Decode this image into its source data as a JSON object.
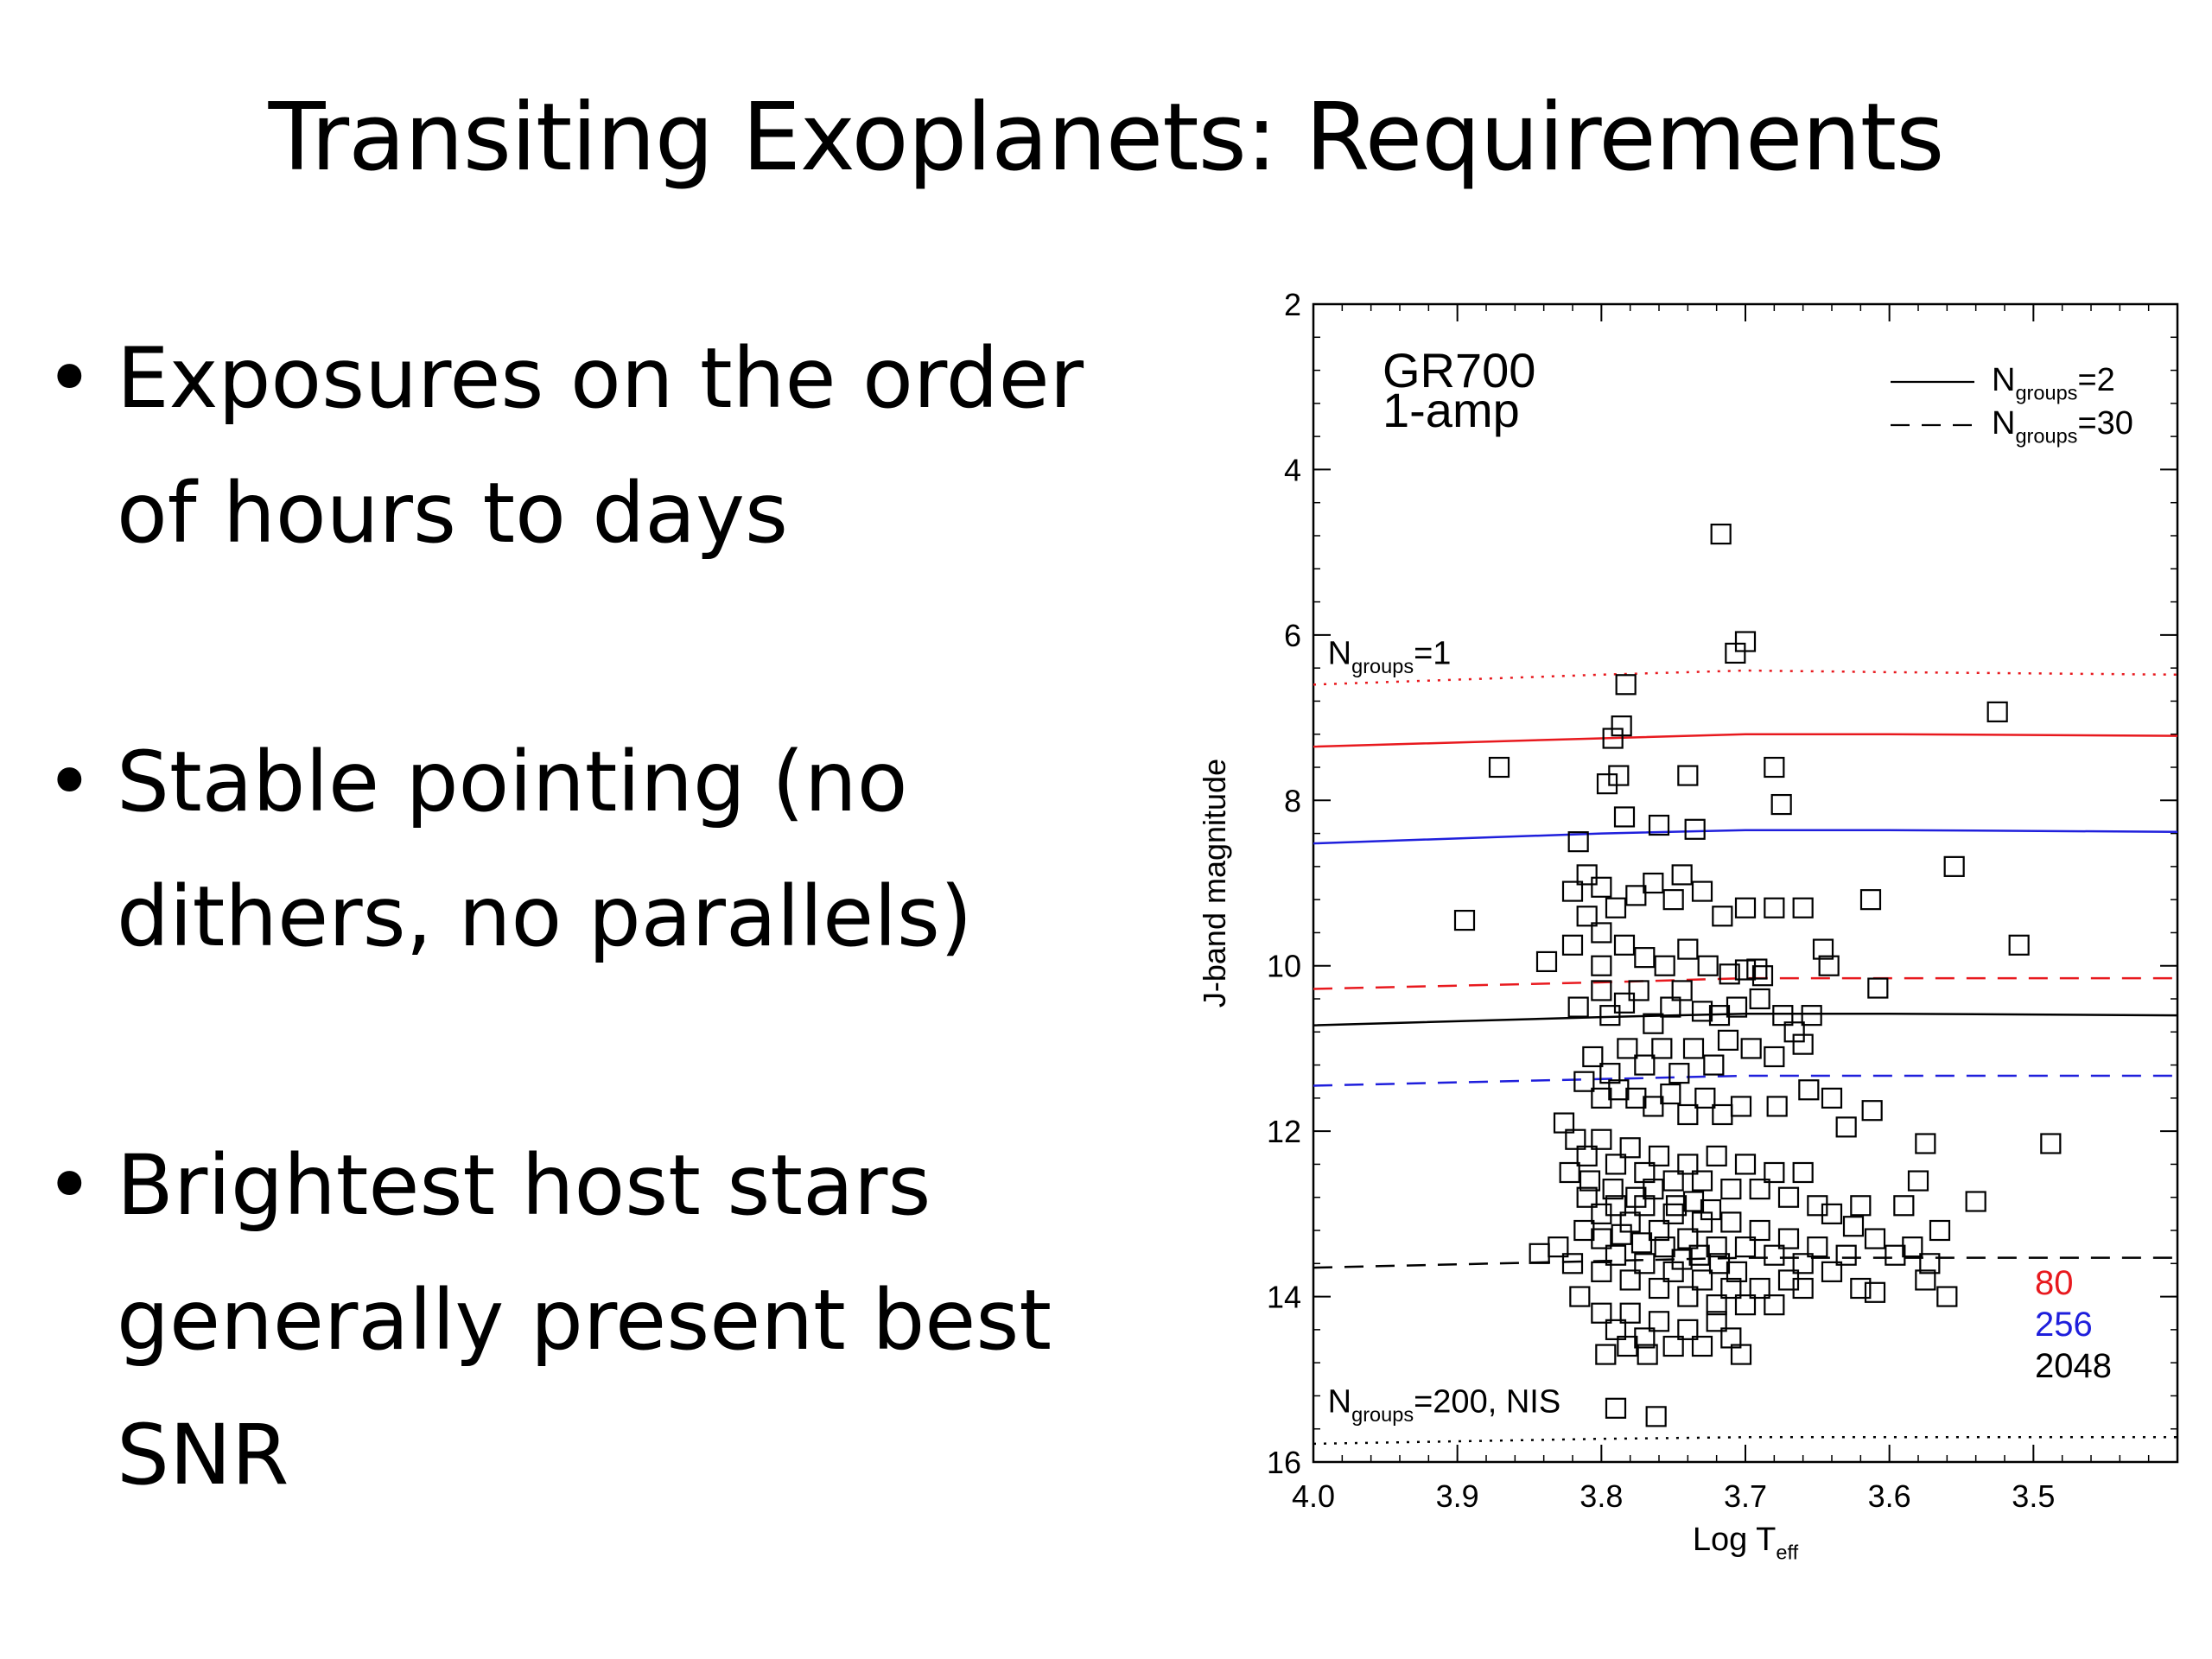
{
  "slide": {
    "title": "Transiting Exoplanets: Requirements",
    "bullets": [
      "Exposures on the order of hours to days",
      "Stable pointing (no dithers, no parallels)",
      "Brightest host stars generally present best SNR"
    ],
    "bullet_symbol": "•"
  },
  "chart_data": {
    "type": "scatter",
    "title_lines": [
      "GR700",
      "1-amp"
    ],
    "xlabel": "Log T",
    "xlabel_sub": "eff",
    "ylabel": "J-band magnitude",
    "xlim": [
      4.0,
      3.4
    ],
    "ylim": [
      16,
      2
    ],
    "y_inverted": true,
    "x_ticks": [
      4.0,
      3.9,
      3.8,
      3.7,
      3.6,
      3.5
    ],
    "x_tick_labels": [
      "4.0",
      "3.9",
      "3.8",
      "3.7",
      "3.6",
      "3.5"
    ],
    "y_ticks": [
      2,
      4,
      6,
      8,
      10,
      12,
      14,
      16
    ],
    "y_tick_labels": [
      "2",
      "4",
      "6",
      "8",
      "10",
      "12",
      "14",
      "16"
    ],
    "grid": false,
    "legend": {
      "placement": "top-right",
      "entries": [
        {
          "style": "solid",
          "label_main": "N",
          "label_sub": "groups",
          "label_rest": "=2"
        },
        {
          "style": "dashed",
          "label_main": "N",
          "label_sub": "groups",
          "label_rest": "=30"
        }
      ]
    },
    "color_key": [
      {
        "label": "80",
        "color": "#e8191e"
      },
      {
        "label": "256",
        "color": "#1f1fdc"
      },
      {
        "label": "2048",
        "color": "#000000"
      }
    ],
    "annotations": [
      {
        "main": "N",
        "sub": "groups",
        "rest": "=1",
        "x": 3.99,
        "y": 6.35
      },
      {
        "main": "N",
        "sub": "groups",
        "rest": "=200, NIS",
        "x": 3.99,
        "y": 15.4
      }
    ],
    "series": [
      {
        "color": "#e8191e",
        "style": "dotted",
        "points": [
          [
            4.0,
            6.6
          ],
          [
            3.8,
            6.48
          ],
          [
            3.7,
            6.43
          ],
          [
            3.6,
            6.45
          ],
          [
            3.4,
            6.48
          ]
        ]
      },
      {
        "color": "#e8191e",
        "style": "solid",
        "points": [
          [
            4.0,
            7.35
          ],
          [
            3.8,
            7.25
          ],
          [
            3.7,
            7.2
          ],
          [
            3.6,
            7.2
          ],
          [
            3.4,
            7.22
          ]
        ]
      },
      {
        "color": "#1f1fdc",
        "style": "solid",
        "points": [
          [
            4.0,
            8.52
          ],
          [
            3.8,
            8.4
          ],
          [
            3.7,
            8.36
          ],
          [
            3.6,
            8.36
          ],
          [
            3.4,
            8.38
          ]
        ]
      },
      {
        "color": "#e8191e",
        "style": "dashed",
        "points": [
          [
            4.0,
            10.28
          ],
          [
            3.8,
            10.2
          ],
          [
            3.7,
            10.15
          ],
          [
            3.6,
            10.15
          ],
          [
            3.4,
            10.15
          ]
        ]
      },
      {
        "color": "#000000",
        "style": "solid",
        "points": [
          [
            4.0,
            10.72
          ],
          [
            3.8,
            10.62
          ],
          [
            3.7,
            10.58
          ],
          [
            3.6,
            10.58
          ],
          [
            3.4,
            10.6
          ]
        ]
      },
      {
        "color": "#1f1fdc",
        "style": "dashed",
        "points": [
          [
            4.0,
            11.45
          ],
          [
            3.8,
            11.37
          ],
          [
            3.7,
            11.33
          ],
          [
            3.6,
            11.33
          ],
          [
            3.4,
            11.33
          ]
        ]
      },
      {
        "color": "#000000",
        "style": "dashed",
        "points": [
          [
            4.0,
            13.65
          ],
          [
            3.8,
            13.57
          ],
          [
            3.7,
            13.53
          ],
          [
            3.6,
            13.53
          ],
          [
            3.4,
            13.53
          ]
        ]
      },
      {
        "color": "#000000",
        "style": "dotted",
        "points": [
          [
            4.0,
            15.78
          ],
          [
            3.8,
            15.72
          ],
          [
            3.7,
            15.7
          ],
          [
            3.6,
            15.7
          ],
          [
            3.4,
            15.7
          ]
        ]
      }
    ],
    "scatter_points": [
      [
        3.717,
        4.78
      ],
      [
        3.7,
        6.08
      ],
      [
        3.707,
        6.22
      ],
      [
        3.783,
        6.6
      ],
      [
        3.786,
        7.1
      ],
      [
        3.792,
        7.25
      ],
      [
        3.525,
        6.93
      ],
      [
        3.871,
        7.6
      ],
      [
        3.74,
        7.7
      ],
      [
        3.68,
        7.6
      ],
      [
        3.675,
        8.05
      ],
      [
        3.788,
        7.7
      ],
      [
        3.796,
        7.8
      ],
      [
        3.784,
        8.2
      ],
      [
        3.76,
        8.3
      ],
      [
        3.735,
        8.35
      ],
      [
        3.555,
        8.8
      ],
      [
        3.51,
        9.75
      ],
      [
        3.895,
        9.45
      ],
      [
        3.838,
        9.95
      ],
      [
        3.613,
        9.2
      ],
      [
        3.66,
        9.3
      ],
      [
        3.68,
        9.3
      ],
      [
        3.7,
        9.3
      ],
      [
        3.716,
        9.4
      ],
      [
        3.73,
        9.1
      ],
      [
        3.744,
        8.9
      ],
      [
        3.75,
        9.2
      ],
      [
        3.764,
        9.0
      ],
      [
        3.776,
        9.15
      ],
      [
        3.79,
        9.3
      ],
      [
        3.8,
        9.05
      ],
      [
        3.81,
        8.9
      ],
      [
        3.816,
        8.5
      ],
      [
        3.82,
        9.1
      ],
      [
        3.81,
        9.4
      ],
      [
        3.8,
        9.6
      ],
      [
        3.82,
        9.75
      ],
      [
        3.8,
        10.0
      ],
      [
        3.784,
        9.75
      ],
      [
        3.77,
        9.9
      ],
      [
        3.756,
        10.0
      ],
      [
        3.74,
        9.8
      ],
      [
        3.726,
        10.0
      ],
      [
        3.711,
        10.1
      ],
      [
        3.7,
        10.05
      ],
      [
        3.646,
        9.8
      ],
      [
        3.642,
        10.0
      ],
      [
        3.608,
        10.27
      ],
      [
        3.692,
        10.04
      ],
      [
        3.688,
        10.12
      ],
      [
        3.8,
        10.3
      ],
      [
        3.816,
        10.5
      ],
      [
        3.794,
        10.6
      ],
      [
        3.784,
        10.45
      ],
      [
        3.774,
        10.3
      ],
      [
        3.764,
        10.7
      ],
      [
        3.752,
        10.5
      ],
      [
        3.744,
        10.3
      ],
      [
        3.73,
        10.55
      ],
      [
        3.718,
        10.6
      ],
      [
        3.706,
        10.5
      ],
      [
        3.69,
        10.4
      ],
      [
        3.674,
        10.6
      ],
      [
        3.666,
        10.8
      ],
      [
        3.654,
        10.6
      ],
      [
        3.66,
        10.95
      ],
      [
        3.68,
        11.1
      ],
      [
        3.696,
        11.0
      ],
      [
        3.712,
        10.9
      ],
      [
        3.722,
        11.2
      ],
      [
        3.736,
        11.0
      ],
      [
        3.746,
        11.3
      ],
      [
        3.758,
        11.0
      ],
      [
        3.77,
        11.2
      ],
      [
        3.782,
        11.0
      ],
      [
        3.794,
        11.3
      ],
      [
        3.806,
        11.1
      ],
      [
        3.812,
        11.4
      ],
      [
        3.8,
        11.6
      ],
      [
        3.788,
        11.5
      ],
      [
        3.776,
        11.6
      ],
      [
        3.764,
        11.7
      ],
      [
        3.752,
        11.55
      ],
      [
        3.74,
        11.8
      ],
      [
        3.728,
        11.6
      ],
      [
        3.716,
        11.8
      ],
      [
        3.703,
        11.7
      ],
      [
        3.678,
        11.7
      ],
      [
        3.656,
        11.5
      ],
      [
        3.64,
        11.6
      ],
      [
        3.63,
        11.95
      ],
      [
        3.612,
        11.75
      ],
      [
        3.826,
        11.9
      ],
      [
        3.818,
        12.1
      ],
      [
        3.81,
        12.3
      ],
      [
        3.8,
        12.1
      ],
      [
        3.79,
        12.4
      ],
      [
        3.78,
        12.2
      ],
      [
        3.77,
        12.5
      ],
      [
        3.76,
        12.3
      ],
      [
        3.75,
        12.6
      ],
      [
        3.74,
        12.4
      ],
      [
        3.73,
        12.6
      ],
      [
        3.72,
        12.3
      ],
      [
        3.71,
        12.7
      ],
      [
        3.7,
        12.4
      ],
      [
        3.69,
        12.7
      ],
      [
        3.68,
        12.5
      ],
      [
        3.67,
        12.8
      ],
      [
        3.66,
        12.5
      ],
      [
        3.65,
        12.9
      ],
      [
        3.64,
        13.0
      ],
      [
        3.62,
        12.9
      ],
      [
        3.59,
        12.9
      ],
      [
        3.58,
        12.6
      ],
      [
        3.575,
        12.15
      ],
      [
        3.565,
        13.2
      ],
      [
        3.54,
        12.85
      ],
      [
        3.572,
        13.6
      ],
      [
        3.584,
        13.4
      ],
      [
        3.596,
        13.5
      ],
      [
        3.61,
        13.3
      ],
      [
        3.625,
        13.15
      ],
      [
        3.63,
        13.5
      ],
      [
        3.62,
        13.9
      ],
      [
        3.61,
        13.95
      ],
      [
        3.56,
        14.0
      ],
      [
        3.575,
        13.8
      ],
      [
        3.488,
        12.15
      ],
      [
        3.81,
        12.8
      ],
      [
        3.8,
        13.0
      ],
      [
        3.79,
        12.9
      ],
      [
        3.78,
        13.1
      ],
      [
        3.77,
        12.9
      ],
      [
        3.76,
        13.2
      ],
      [
        3.75,
        13.0
      ],
      [
        3.74,
        13.3
      ],
      [
        3.73,
        13.1
      ],
      [
        3.72,
        13.4
      ],
      [
        3.71,
        13.1
      ],
      [
        3.7,
        13.4
      ],
      [
        3.69,
        13.2
      ],
      [
        3.68,
        13.5
      ],
      [
        3.67,
        13.3
      ],
      [
        3.66,
        13.6
      ],
      [
        3.65,
        13.4
      ],
      [
        3.64,
        13.7
      ],
      [
        3.83,
        13.4
      ],
      [
        3.82,
        13.6
      ],
      [
        3.8,
        13.7
      ],
      [
        3.79,
        13.5
      ],
      [
        3.78,
        13.8
      ],
      [
        3.77,
        13.6
      ],
      [
        3.76,
        13.9
      ],
      [
        3.75,
        13.7
      ],
      [
        3.74,
        14.0
      ],
      [
        3.73,
        13.8
      ],
      [
        3.72,
        14.1
      ],
      [
        3.71,
        13.9
      ],
      [
        3.7,
        14.1
      ],
      [
        3.69,
        13.9
      ],
      [
        3.68,
        14.1
      ],
      [
        3.67,
        13.8
      ],
      [
        3.66,
        13.9
      ],
      [
        3.843,
        13.48
      ],
      [
        3.815,
        14.0
      ],
      [
        3.8,
        14.2
      ],
      [
        3.79,
        14.4
      ],
      [
        3.78,
        14.2
      ],
      [
        3.77,
        14.5
      ],
      [
        3.76,
        14.3
      ],
      [
        3.75,
        14.6
      ],
      [
        3.74,
        14.4
      ],
      [
        3.73,
        14.6
      ],
      [
        3.72,
        14.3
      ],
      [
        3.71,
        14.5
      ],
      [
        3.797,
        14.7
      ],
      [
        3.782,
        14.6
      ],
      [
        3.768,
        14.7
      ],
      [
        3.703,
        14.7
      ],
      [
        3.79,
        15.35
      ],
      [
        3.762,
        15.45
      ],
      [
        3.822,
        12.5
      ],
      [
        3.808,
        12.6
      ],
      [
        3.792,
        12.7
      ],
      [
        3.776,
        12.8
      ],
      [
        3.764,
        12.7
      ],
      [
        3.748,
        12.9
      ],
      [
        3.736,
        12.85
      ],
      [
        3.724,
        12.95
      ],
      [
        3.812,
        13.2
      ],
      [
        3.8,
        13.3
      ],
      [
        3.786,
        13.25
      ],
      [
        3.772,
        13.35
      ],
      [
        3.756,
        13.4
      ],
      [
        3.744,
        13.55
      ],
      [
        3.732,
        13.5
      ],
      [
        3.718,
        13.6
      ],
      [
        3.706,
        13.7
      ]
    ]
  }
}
